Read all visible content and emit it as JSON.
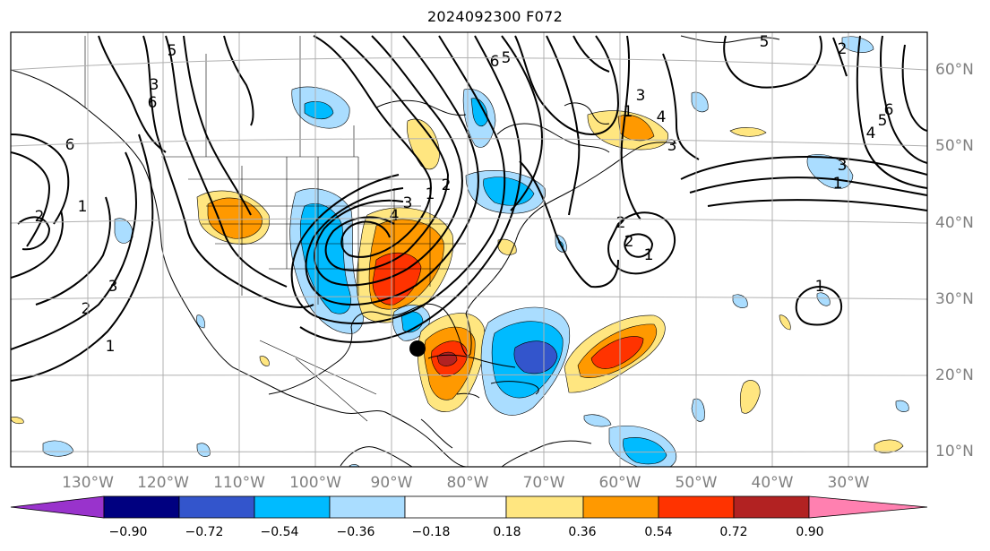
{
  "title": "2024092300 F072",
  "lat_labels": [
    "60°N",
    "50°N",
    "40°N",
    "30°N",
    "20°N",
    "10°N"
  ],
  "lon_labels": [
    "130°W",
    "120°W",
    "110°W",
    "100°W",
    "90°W",
    "80°W",
    "70°W",
    "60°W",
    "50°W",
    "40°W",
    "30°W"
  ],
  "colorbar": {
    "ticks": [
      "−0.90",
      "−0.72",
      "−0.54",
      "−0.36",
      "−0.18",
      "0.18",
      "0.36",
      "0.54",
      "0.72",
      "0.90"
    ],
    "colors": [
      "#9933cc",
      "#000080",
      "#3355cc",
      "#00bbff",
      "#aaddff",
      "#ffffff",
      "#ffe680",
      "#ff9900",
      "#ff3300",
      "#b22222",
      "#ff80b0"
    ]
  },
  "contour_labels": [
    "6",
    "1",
    "2",
    "3",
    "6",
    "5",
    "1",
    "2",
    "3",
    "4",
    "5",
    "6",
    "3",
    "1",
    "6",
    "5",
    "4",
    "3",
    "2",
    "1",
    "2",
    "1",
    "3",
    "4",
    "5",
    "3",
    "2",
    "1",
    "2",
    "1"
  ],
  "marker": {
    "lon": -85.7,
    "lat": 23.5,
    "color": "#000000"
  }
}
